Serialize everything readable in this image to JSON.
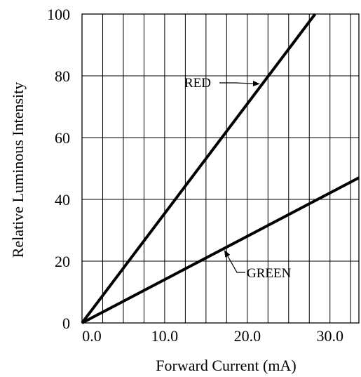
{
  "chart_data": {
    "type": "line",
    "xlabel": "Forward Current (mA)",
    "ylabel": "Relative Luminous Intensity",
    "xlim": [
      0,
      33.5
    ],
    "ylim": [
      0,
      100
    ],
    "x_ticks": [
      0,
      10,
      20,
      30
    ],
    "x_tick_labels": [
      "0.0",
      "10.0",
      "20.0",
      "30.0"
    ],
    "y_ticks": [
      0,
      20,
      40,
      60,
      80,
      100
    ],
    "y_tick_labels": [
      "0",
      "20",
      "40",
      "60",
      "80",
      "100"
    ],
    "grid": true,
    "series": [
      {
        "name": "RED",
        "x": [
          0,
          28.2
        ],
        "y": [
          0,
          100
        ],
        "color": "#000000"
      },
      {
        "name": "GREEN",
        "x": [
          0,
          33.5
        ],
        "y": [
          0,
          47
        ],
        "color": "#000000"
      }
    ]
  }
}
